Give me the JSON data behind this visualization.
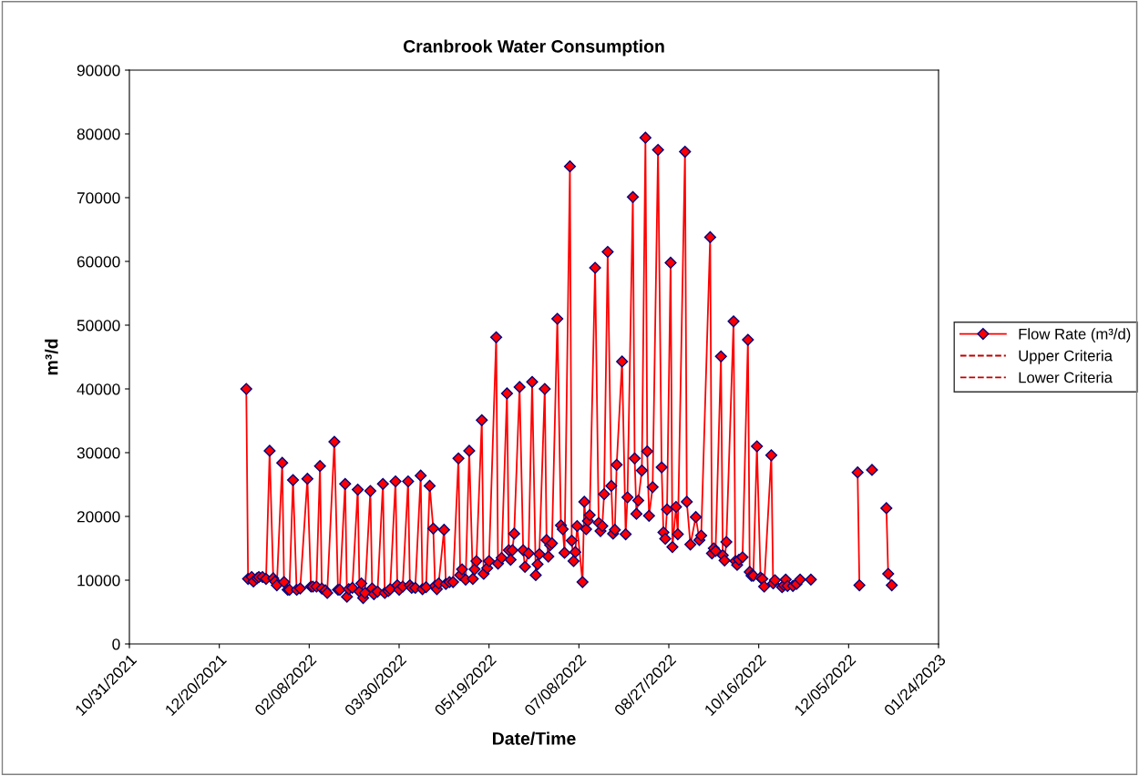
{
  "chart_data": {
    "type": "line",
    "title": "Cranbrook Water Consumption",
    "xlabel": "Date/Time",
    "ylabel": "m³/d",
    "xlim": [
      "2021-10-31",
      "2023-01-24"
    ],
    "xticks": [
      {
        "value": "2021-10-31",
        "label": "10/31/2021"
      },
      {
        "value": "2021-12-20",
        "label": "12/20/2021"
      },
      {
        "value": "2022-02-08",
        "label": "02/08/2022"
      },
      {
        "value": "2022-03-30",
        "label": "03/30/2022"
      },
      {
        "value": "2022-05-19",
        "label": "05/19/2022"
      },
      {
        "value": "2022-07-08",
        "label": "07/08/2022"
      },
      {
        "value": "2022-08-27",
        "label": "08/27/2022"
      },
      {
        "value": "2022-10-16",
        "label": "10/16/2022"
      },
      {
        "value": "2022-12-05",
        "label": "12/05/2022"
      },
      {
        "value": "2023-01-24",
        "label": "01/24/2023"
      }
    ],
    "ylim": [
      0,
      90000
    ],
    "yticks": [
      0,
      10000,
      20000,
      30000,
      40000,
      50000,
      60000,
      70000,
      80000,
      90000
    ],
    "grid": false,
    "legend": "right",
    "marker": "diamond",
    "line_style": "solid",
    "series": [
      {
        "name": "Flow Rate (m³/d)",
        "color": "#ff0000",
        "x": [
          "2022-01-04",
          "2022-01-05",
          "2022-01-07",
          "2022-01-08",
          "2022-01-10",
          "2022-01-11",
          "2022-01-13",
          "2022-01-15",
          "2022-01-17",
          "2022-01-19",
          "2022-01-20",
          "2022-01-21",
          "2022-01-24",
          "2022-01-25",
          "2022-01-27",
          "2022-01-28",
          "2022-01-30",
          "2022-02-01",
          "2022-02-03",
          "2022-02-07",
          "2022-02-09",
          "2022-02-10",
          "2022-02-12",
          "2022-02-14",
          "2022-02-15",
          "2022-02-17",
          "2022-02-18",
          "2022-02-22",
          "2022-02-24",
          "2022-02-25",
          "2022-02-28",
          "2022-03-01",
          "2022-03-02",
          "2022-03-04",
          "2022-03-07",
          "2022-03-08",
          "2022-03-09",
          "2022-03-10",
          "2022-03-11",
          "2022-03-14",
          "2022-03-15",
          "2022-03-16",
          "2022-03-18",
          "2022-03-21",
          "2022-03-22",
          "2022-03-24",
          "2022-03-25",
          "2022-03-28",
          "2022-03-29",
          "2022-03-30",
          "2022-04-01",
          "2022-04-04",
          "2022-04-05",
          "2022-04-06",
          "2022-04-08",
          "2022-04-11",
          "2022-04-12",
          "2022-04-14",
          "2022-04-16",
          "2022-04-18",
          "2022-04-19",
          "2022-04-20",
          "2022-04-21",
          "2022-04-24",
          "2022-04-25",
          "2022-04-27",
          "2022-04-29",
          "2022-05-02",
          "2022-05-03",
          "2022-05-04",
          "2022-05-06",
          "2022-05-08",
          "2022-05-10",
          "2022-05-11",
          "2022-05-12",
          "2022-05-15",
          "2022-05-16",
          "2022-05-18",
          "2022-05-19",
          "2022-05-23",
          "2022-05-24",
          "2022-05-26",
          "2022-05-29",
          "2022-05-30",
          "2022-05-31",
          "2022-06-01",
          "2022-06-02",
          "2022-06-05",
          "2022-06-07",
          "2022-06-08",
          "2022-06-10",
          "2022-06-12",
          "2022-06-14",
          "2022-06-15",
          "2022-06-16",
          "2022-06-19",
          "2022-06-20",
          "2022-06-21",
          "2022-06-22",
          "2022-06-23",
          "2022-06-26",
          "2022-06-28",
          "2022-06-29",
          "2022-06-30",
          "2022-07-03",
          "2022-07-04",
          "2022-07-05",
          "2022-07-06",
          "2022-07-07",
          "2022-07-10",
          "2022-07-11",
          "2022-07-12",
          "2022-07-13",
          "2022-07-14",
          "2022-07-17",
          "2022-07-19",
          "2022-07-20",
          "2022-07-21",
          "2022-07-22",
          "2022-07-24",
          "2022-07-26",
          "2022-07-27",
          "2022-07-28",
          "2022-07-29",
          "2022-08-01",
          "2022-08-03",
          "2022-08-04",
          "2022-08-07",
          "2022-08-08",
          "2022-08-09",
          "2022-08-10",
          "2022-08-12",
          "2022-08-14",
          "2022-08-15",
          "2022-08-16",
          "2022-08-18",
          "2022-08-21",
          "2022-08-23",
          "2022-08-24",
          "2022-08-25",
          "2022-08-26",
          "2022-08-28",
          "2022-08-29",
          "2022-08-31",
          "2022-09-01",
          "2022-09-05",
          "2022-09-06",
          "2022-09-08",
          "2022-09-11",
          "2022-09-13",
          "2022-09-14",
          "2022-09-19",
          "2022-09-20",
          "2022-09-21",
          "2022-09-22",
          "2022-09-25",
          "2022-09-26",
          "2022-09-27",
          "2022-09-28",
          "2022-10-02",
          "2022-10-03",
          "2022-10-04",
          "2022-10-05",
          "2022-10-07",
          "2022-10-10",
          "2022-10-11",
          "2022-10-12",
          "2022-10-13",
          "2022-10-15",
          "2022-10-17",
          "2022-10-18",
          "2022-10-19",
          "2022-10-23",
          "2022-10-24",
          "2022-10-25",
          "2022-10-29",
          "2022-10-30",
          "2022-10-31",
          "2022-11-01",
          "2022-11-04",
          "2022-11-06",
          "2022-11-08",
          "2022-11-14",
          "2022-11-27",
          "2022-12-10",
          "2022-12-11",
          "2022-12-14",
          "2022-12-18",
          "2022-12-22",
          "2022-12-26",
          "2022-12-27",
          "2022-12-29"
        ],
        "values": [
          40000,
          10200,
          10500,
          9800,
          10300,
          10500,
          10500,
          10200,
          30300,
          10300,
          9800,
          9200,
          28400,
          9700,
          8500,
          8500,
          25700,
          8500,
          8700,
          25900,
          9000,
          9000,
          9000,
          27900,
          8700,
          8400,
          8000,
          31700,
          8500,
          8500,
          25100,
          7400,
          8600,
          8800,
          24200,
          8200,
          9500,
          7200,
          8000,
          24000,
          8700,
          7800,
          8200,
          25100,
          8000,
          8300,
          8600,
          25500,
          9200,
          8500,
          9000,
          25500,
          9200,
          8800,
          8800,
          26400,
          8600,
          8900,
          24800,
          18100,
          9100,
          8600,
          9500,
          17900,
          9400,
          9700,
          9700,
          29100,
          10800,
          11700,
          10100,
          30300,
          10200,
          11700,
          13000,
          35100,
          11000,
          11900,
          13000,
          48100,
          12600,
          13500,
          39300,
          14700,
          13200,
          14700,
          17300,
          40300,
          14700,
          12100,
          14200,
          41100,
          10800,
          12500,
          14100,
          40000,
          16300,
          13700,
          15500,
          15800,
          51000,
          18600,
          18000,
          14300,
          74900,
          16200,
          13000,
          14400,
          18500,
          9700,
          22300,
          18000,
          19300,
          20200,
          59000,
          19000,
          17700,
          18500,
          23500,
          61500,
          24800,
          17300,
          17900,
          28100,
          44300,
          17200,
          23000,
          70100,
          29100,
          20400,
          22500,
          27200,
          79400,
          30200,
          20100,
          24600,
          77500,
          27700,
          17500,
          16500,
          21100,
          59800,
          15200,
          21500,
          17200,
          77200,
          22300,
          15600,
          19900,
          16300,
          17000,
          63800,
          14200,
          15000,
          14600,
          45100,
          13900,
          13100,
          16000,
          50600,
          13000,
          12400,
          13200,
          13600,
          47700,
          11300,
          10700,
          10700,
          31000,
          10400,
          10200,
          9000,
          29600,
          9500,
          10000,
          8900,
          9200,
          10100,
          9100,
          9100,
          9400,
          10100,
          10100,
          null,
          26900,
          9200,
          null,
          27300,
          null,
          21300,
          11000,
          9200
        ]
      },
      {
        "name": "Upper Criteria",
        "color": "#c00000",
        "line_style": "dashed",
        "marker": "none"
      },
      {
        "name": "Lower Criteria",
        "color": "#c00000",
        "line_style": "dashed",
        "marker": "none"
      }
    ]
  }
}
